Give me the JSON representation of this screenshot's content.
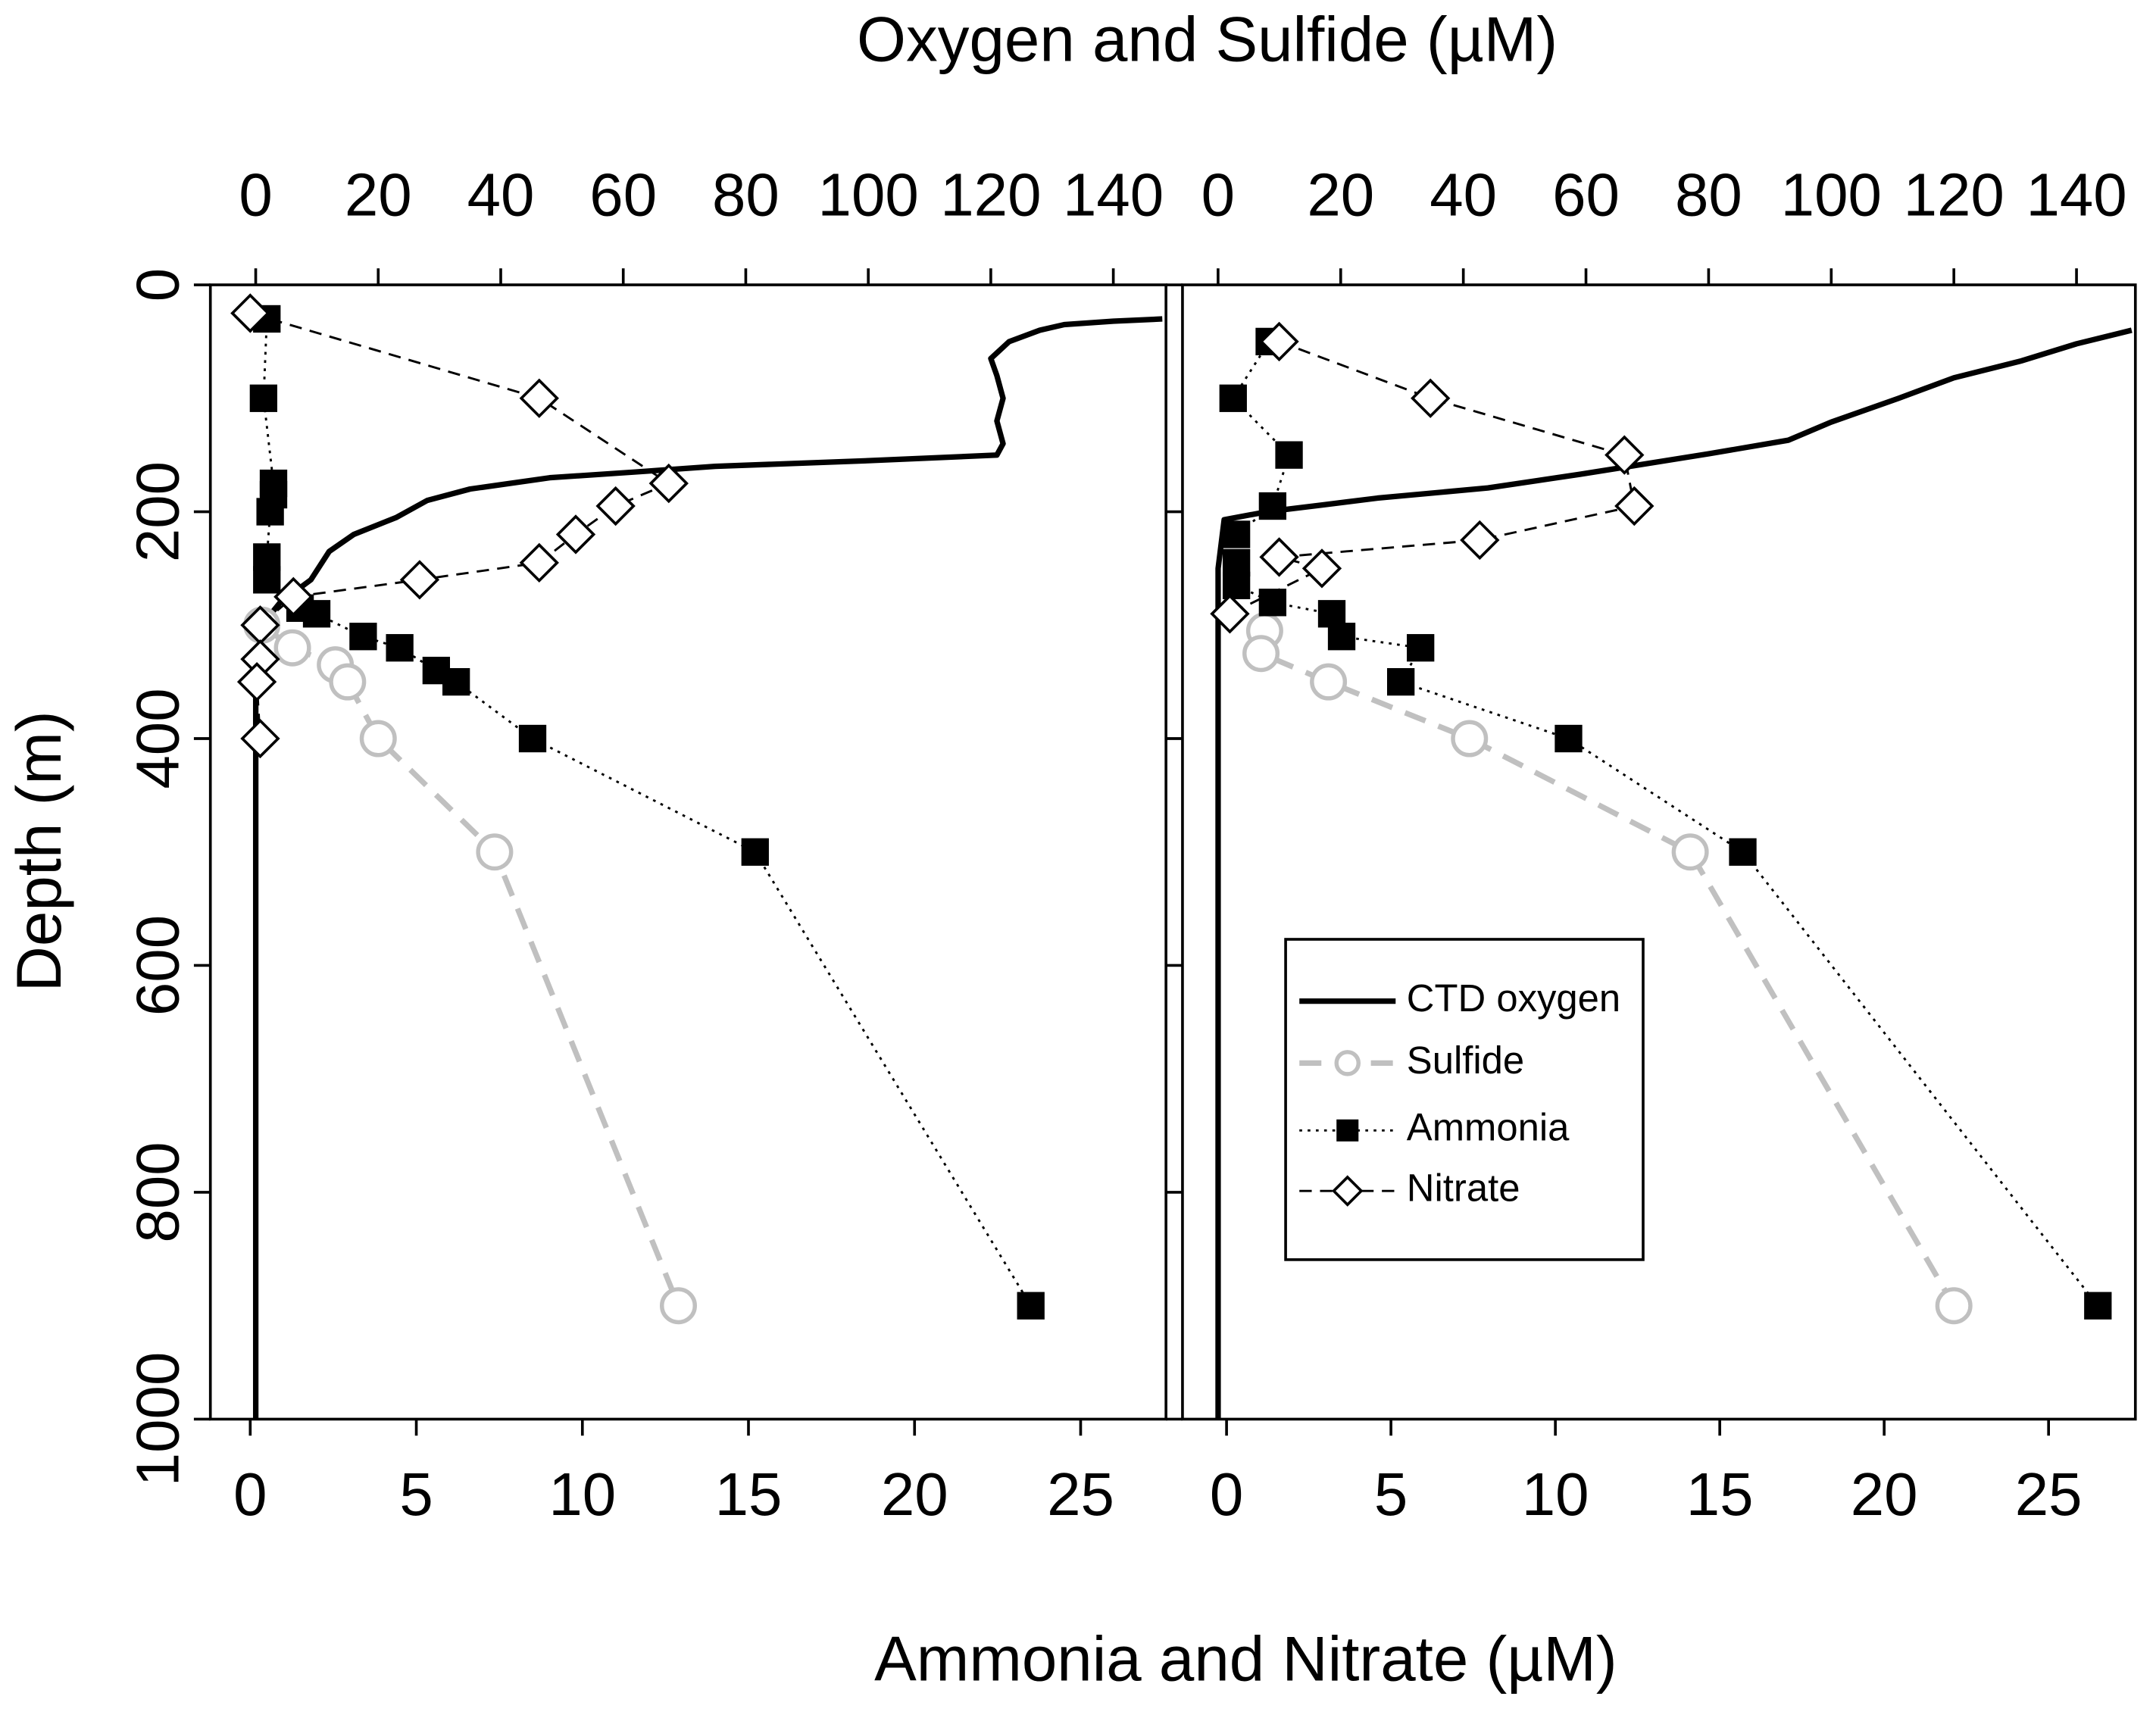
{
  "chart_data": [
    {
      "type": "line",
      "x2label": "Oxygen and Sulfide (µM)",
      "xlabel": "Ammonia and Nitrate (µM)",
      "ylabel": "Depth (m)",
      "xlim": [
        -1.2,
        27.57
      ],
      "xticks": [
        0,
        5,
        10,
        15,
        20,
        25
      ],
      "x2lim": [
        -7.4,
        148.6
      ],
      "x2ticks": [
        0,
        20,
        40,
        60,
        80,
        100,
        120,
        140
      ],
      "ylim": [
        0,
        1000
      ],
      "yticks": [
        0,
        200,
        400,
        600,
        800,
        1000
      ],
      "y_inverted": true,
      "series": [
        {
          "name": "CTD oxygen",
          "color": "#000000",
          "dash": "solid",
          "marker": "none",
          "axis": "x2",
          "depth": [
            30,
            32,
            35,
            40,
            50,
            65,
            80,
            100,
            120,
            140,
            150,
            155,
            160,
            165,
            170,
            180,
            190,
            205,
            220,
            235,
            260,
            280,
            300,
            350,
            400,
            600,
            800,
            1000
          ],
          "values": [
            148,
            140,
            132,
            128,
            123,
            120,
            121,
            122,
            121,
            122,
            121,
            100,
            75,
            62,
            48,
            35,
            28,
            23,
            16,
            12,
            9,
            4,
            1,
            0,
            0,
            0,
            0,
            0
          ]
        },
        {
          "name": "Sulfide",
          "color": "#c0c0c0",
          "dash": "longdash",
          "marker": "circle",
          "axis": "x2",
          "depth": [
            300,
            320,
            335,
            350,
            400,
            500,
            900
          ],
          "values": [
            1,
            6,
            13,
            15,
            20,
            39,
            69
          ]
        },
        {
          "name": "Ammonia",
          "color": "#000000",
          "dash": "dotted",
          "marker": "square",
          "axis": "x",
          "depth": [
            30,
            100,
            175,
            185,
            200,
            240,
            260,
            285,
            290,
            310,
            320,
            340,
            350,
            400,
            500,
            900
          ],
          "values": [
            0.5,
            0.4,
            0.7,
            0.7,
            0.6,
            0.5,
            0.5,
            1.5,
            2.0,
            3.4,
            4.5,
            5.6,
            6.2,
            8.5,
            15.2,
            23.5
          ]
        },
        {
          "name": "Nitrate",
          "color": "#000000",
          "dash": "dashed",
          "marker": "diamond",
          "axis": "x",
          "depth": [
            25,
            100,
            175,
            195,
            220,
            245,
            260,
            275,
            300,
            330,
            350,
            400
          ],
          "values": [
            0,
            8.7,
            12.6,
            11.0,
            9.8,
            8.7,
            5.1,
            1.3,
            0.3,
            0.3,
            0.2,
            0.3
          ]
        }
      ]
    },
    {
      "type": "line",
      "xlim": [
        -1.34,
        27.64
      ],
      "xticks": [
        0,
        5,
        10,
        15,
        20,
        25
      ],
      "x2lim": [
        -5.8,
        149.6
      ],
      "x2ticks": [
        0,
        20,
        40,
        60,
        80,
        100,
        120,
        140
      ],
      "ylim": [
        0,
        1000
      ],
      "yticks": [
        0,
        200,
        400,
        600,
        800,
        1000
      ],
      "y_inverted": true,
      "legend": "lower left",
      "series": [
        {
          "name": "CTD oxygen",
          "color": "#000000",
          "dash": "solid",
          "marker": "none",
          "axis": "x2",
          "depth": [
            40,
            52,
            67,
            82,
            100,
            121,
            137,
            149,
            167,
            179,
            188,
            194,
            200,
            207,
            250,
            400,
            600,
            800,
            1000
          ],
          "values": [
            149,
            140,
            131,
            120,
            111,
            100,
            93,
            80,
            59,
            44,
            26,
            17,
            8,
            1,
            0,
            0,
            0,
            0,
            0
          ]
        },
        {
          "name": "Sulfide",
          "color": "#c0c0c0",
          "dash": "longdash",
          "marker": "circle",
          "axis": "x2",
          "depth": [
            305,
            325,
            350,
            400,
            500,
            900
          ],
          "values": [
            7.6,
            7,
            18,
            41,
            77,
            120
          ]
        },
        {
          "name": "Ammonia",
          "color": "#000000",
          "dash": "dotted",
          "marker": "square",
          "axis": "x",
          "depth": [
            50,
            100,
            150,
            195,
            220,
            245,
            265,
            280,
            290,
            310,
            320,
            350,
            400,
            500,
            900
          ],
          "values": [
            1.3,
            0.2,
            1.9,
            1.4,
            0.3,
            0.3,
            0.3,
            1.4,
            3.2,
            3.5,
            5.9,
            5.3,
            10.4,
            15.7,
            26.5
          ]
        },
        {
          "name": "Nitrate",
          "color": "#000000",
          "dash": "dashed",
          "marker": "diamond",
          "axis": "x",
          "depth": [
            50,
            100,
            150,
            195,
            225,
            240,
            250,
            290
          ],
          "values": [
            1.6,
            6.2,
            12.1,
            12.4,
            7.7,
            1.6,
            2.9,
            0.1
          ]
        }
      ]
    }
  ]
}
